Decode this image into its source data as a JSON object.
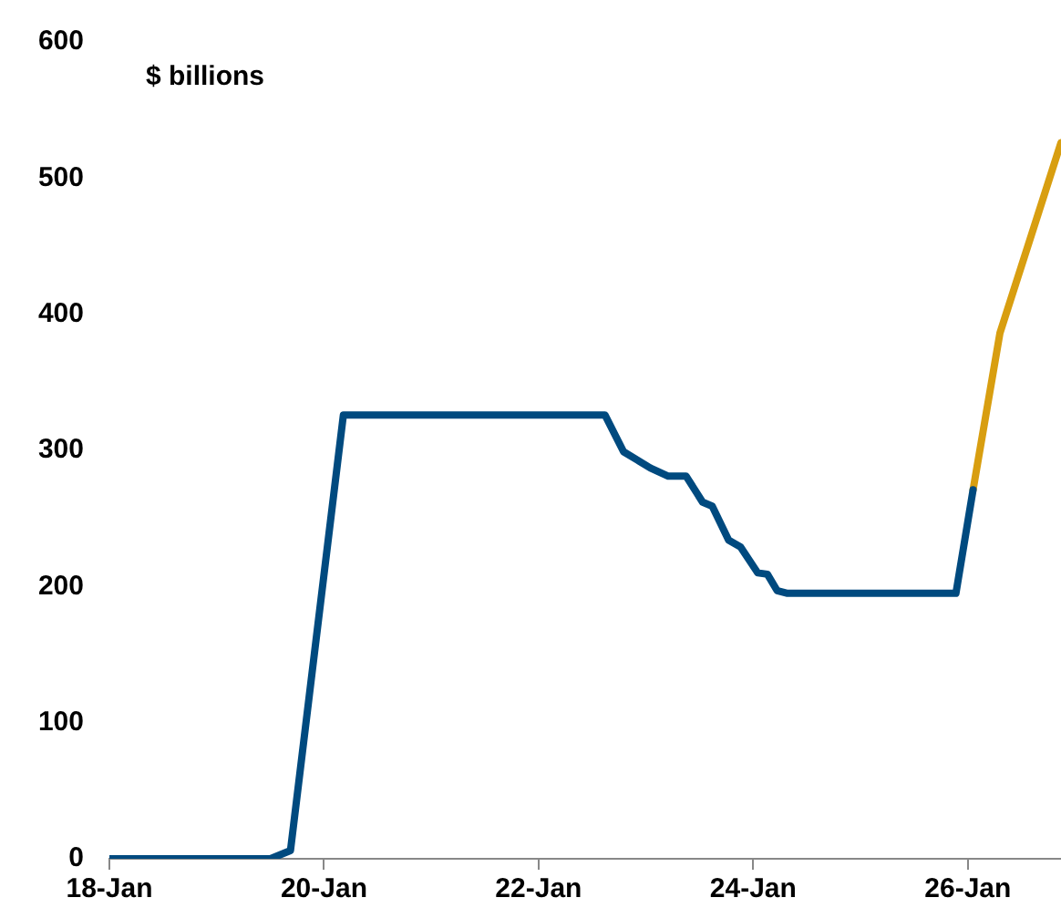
{
  "chart_data": {
    "type": "line",
    "ylabel": "$ billions",
    "xlim": [
      "--01-18",
      "--01-26T20:50"
    ],
    "xticks": [
      {
        "value": "--01-18",
        "label": "18-Jan"
      },
      {
        "value": "--01-20",
        "label": "20-Jan"
      },
      {
        "value": "--01-22",
        "label": "22-Jan"
      },
      {
        "value": "--01-24",
        "label": "24-Jan"
      },
      {
        "value": "--01-26",
        "label": "26-Jan"
      }
    ],
    "ylim": [
      0,
      600
    ],
    "yticks": [
      0,
      100,
      200,
      300,
      400,
      500,
      600
    ],
    "grid": false,
    "legend": false,
    "marker": "none",
    "line_style": "solid",
    "series": [
      {
        "color": "#004a7f",
        "x": [
          "--01-18",
          "--01-19T12:00",
          "--01-19T16:30",
          "--01-20T04:20",
          "--01-22T14:50",
          "--01-22T19:00",
          "--01-22T22:00",
          "--01-23T01:00",
          "--01-23T05:00",
          "--01-23T09:00",
          "--01-23T12:40",
          "--01-23T14:50",
          "--01-23T18:30",
          "--01-23T21:10",
          "--01-24T01:00",
          "--01-24T03:10",
          "--01-24T05:20",
          "--01-24T07:40",
          "--01-25T21:20",
          "--01-26T01:10"
        ],
        "values": [
          0,
          0,
          6,
          326,
          326,
          299,
          293,
          287,
          281,
          281,
          262,
          259,
          234,
          229,
          210,
          209,
          197,
          195,
          195,
          271
        ]
      },
      {
        "color": "#d89e10",
        "x": [
          "--01-26T01:10",
          "--01-26T07:10",
          "--01-26T20:50"
        ],
        "values": [
          271,
          386,
          526
        ]
      }
    ]
  }
}
